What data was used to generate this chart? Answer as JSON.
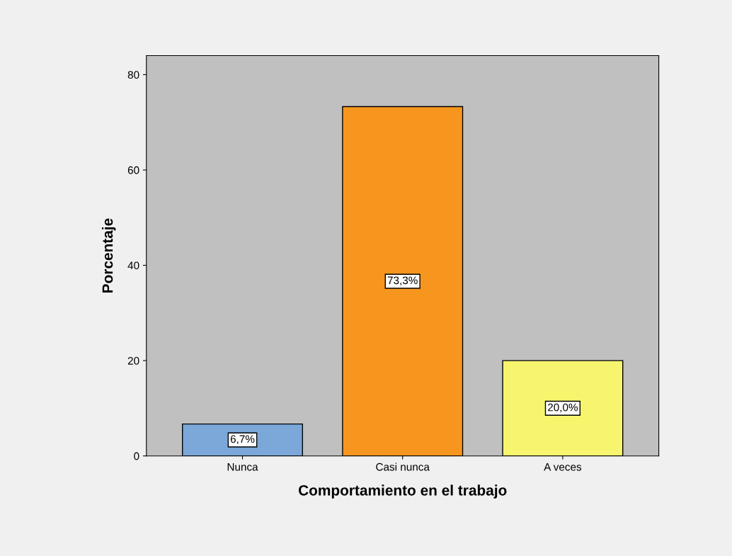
{
  "chart_data": {
    "type": "bar",
    "xlabel": "Comportamiento en el trabajo",
    "ylabel": "Porcentaje",
    "categories": [
      "Nunca",
      "Casi nunca",
      "A veces"
    ],
    "values": [
      6.7,
      73.3,
      20.0
    ],
    "colors": [
      "#7ba7d9",
      "#f7961e",
      "#f7f56e"
    ],
    "value_labels": [
      "6,7%",
      "73,3%",
      "20,0%"
    ],
    "ylim": [
      0,
      84
    ],
    "yticks": [
      0,
      20,
      40,
      60,
      80
    ],
    "grid": false
  }
}
